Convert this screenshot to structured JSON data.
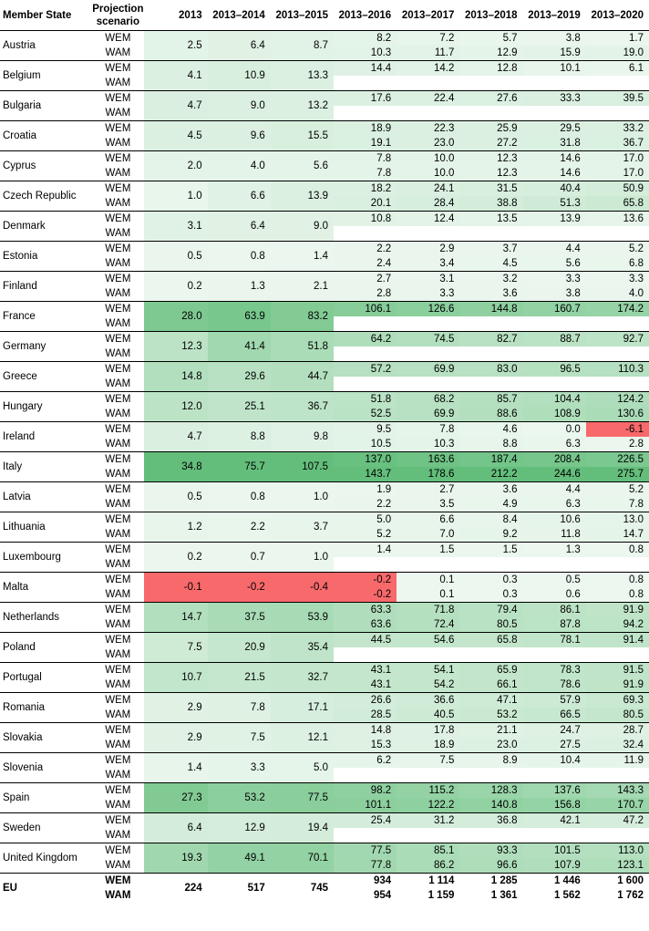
{
  "headers": {
    "member_state": "Member State",
    "projection_scenario": "Projection scenario",
    "periods": [
      "2013",
      "2013–2014",
      "2013–2015",
      "2013–2016",
      "2013–2017",
      "2013–2018",
      "2013–2019",
      "2013–2020"
    ]
  },
  "colors": {
    "positive_scale_max": "#63be7b",
    "zero": "#ffffff",
    "negative_scale_max": "#f8696b"
  },
  "rows": [
    {
      "state": "Austria",
      "wem": [
        "2.5",
        "6.4",
        "8.7",
        "8.2",
        "7.2",
        "5.7",
        "3.8",
        "1.7"
      ],
      "wam": [
        "10.3",
        "11.7",
        "12.9",
        "15.9",
        "19.0"
      ]
    },
    {
      "state": "Belgium",
      "wem": [
        "4.1",
        "10.9",
        "13.3",
        "14.4",
        "14.2",
        "12.8",
        "10.1",
        "6.1"
      ],
      "wam": []
    },
    {
      "state": "Bulgaria",
      "wem": [
        "4.7",
        "9.0",
        "13.2",
        "17.6",
        "22.4",
        "27.6",
        "33.3",
        "39.5"
      ],
      "wam": []
    },
    {
      "state": "Croatia",
      "wem": [
        "4.5",
        "9.6",
        "15.5",
        "18.9",
        "22.3",
        "25.9",
        "29.5",
        "33.2"
      ],
      "wam": [
        "19.1",
        "23.0",
        "27.2",
        "31.8",
        "36.7"
      ]
    },
    {
      "state": "Cyprus",
      "wem": [
        "2.0",
        "4.0",
        "5.6",
        "7.8",
        "10.0",
        "12.3",
        "14.6",
        "17.0"
      ],
      "wam": [
        "7.8",
        "10.0",
        "12.3",
        "14.6",
        "17.0"
      ]
    },
    {
      "state": "Czech Republic",
      "wem": [
        "1.0",
        "6.6",
        "13.9",
        "18.2",
        "24.1",
        "31.5",
        "40.4",
        "50.9"
      ],
      "wam": [
        "20.1",
        "28.4",
        "38.8",
        "51.3",
        "65.8"
      ]
    },
    {
      "state": "Denmark",
      "wem": [
        "3.1",
        "6.4",
        "9.0",
        "10.8",
        "12.4",
        "13.5",
        "13.9",
        "13.6"
      ],
      "wam": []
    },
    {
      "state": "Estonia",
      "wem": [
        "0.5",
        "0.8",
        "1.4",
        "2.2",
        "2.9",
        "3.7",
        "4.4",
        "5.2"
      ],
      "wam": [
        "2.4",
        "3.4",
        "4.5",
        "5.6",
        "6.8"
      ]
    },
    {
      "state": "Finland",
      "wem": [
        "0.2",
        "1.3",
        "2.1",
        "2.7",
        "3.1",
        "3.2",
        "3.3",
        "3.3"
      ],
      "wam": [
        "2.8",
        "3.3",
        "3.6",
        "3.8",
        "4.0"
      ]
    },
    {
      "state": "France",
      "wem": [
        "28.0",
        "63.9",
        "83.2",
        "106.1",
        "126.6",
        "144.8",
        "160.7",
        "174.2"
      ],
      "wam": []
    },
    {
      "state": "Germany",
      "wem": [
        "12.3",
        "41.4",
        "51.8",
        "64.2",
        "74.5",
        "82.7",
        "88.7",
        "92.7"
      ],
      "wam": []
    },
    {
      "state": "Greece",
      "wem": [
        "14.8",
        "29.6",
        "44.7",
        "57.2",
        "69.9",
        "83.0",
        "96.5",
        "110.3"
      ],
      "wam": []
    },
    {
      "state": "Hungary",
      "wem": [
        "12.0",
        "25.1",
        "36.7",
        "51.8",
        "68.2",
        "85.7",
        "104.4",
        "124.2"
      ],
      "wam": [
        "52.5",
        "69.9",
        "88.6",
        "108.9",
        "130.6"
      ]
    },
    {
      "state": "Ireland",
      "wem": [
        "4.7",
        "8.8",
        "9.8",
        "9.5",
        "7.8",
        "4.6",
        "0.0",
        "-6.1"
      ],
      "wam": [
        "10.5",
        "10.3",
        "8.8",
        "6.3",
        "2.8"
      ]
    },
    {
      "state": "Italy",
      "wem": [
        "34.8",
        "75.7",
        "107.5",
        "137.0",
        "163.6",
        "187.4",
        "208.4",
        "226.5"
      ],
      "wam": [
        "143.7",
        "178.6",
        "212.2",
        "244.6",
        "275.7"
      ]
    },
    {
      "state": "Latvia",
      "wem": [
        "0.5",
        "0.8",
        "1.0",
        "1.9",
        "2.7",
        "3.6",
        "4.4",
        "5.2"
      ],
      "wam": [
        "2.2",
        "3.5",
        "4.9",
        "6.3",
        "7.8"
      ]
    },
    {
      "state": "Lithuania",
      "wem": [
        "1.2",
        "2.2",
        "3.7",
        "5.0",
        "6.6",
        "8.4",
        "10.6",
        "13.0"
      ],
      "wam": [
        "5.2",
        "7.0",
        "9.2",
        "11.8",
        "14.7"
      ]
    },
    {
      "state": "Luxembourg",
      "wem": [
        "0.2",
        "0.7",
        "1.0",
        "1.4",
        "1.5",
        "1.5",
        "1.3",
        "0.8"
      ],
      "wam": []
    },
    {
      "state": "Malta",
      "wem": [
        "-0.1",
        "-0.2",
        "-0.4",
        "-0.2",
        "0.1",
        "0.3",
        "0.5",
        "0.8"
      ],
      "wam": [
        "-0.2",
        "0.1",
        "0.3",
        "0.6",
        "0.8"
      ]
    },
    {
      "state": "Netherlands",
      "wem": [
        "14.7",
        "37.5",
        "53.9",
        "63.3",
        "71.8",
        "79.4",
        "86.1",
        "91.9"
      ],
      "wam": [
        "63.6",
        "72.4",
        "80.5",
        "87.8",
        "94.2"
      ]
    },
    {
      "state": "Poland",
      "wem": [
        "7.5",
        "20.9",
        "35.4",
        "44.5",
        "54.6",
        "65.8",
        "78.1",
        "91.4"
      ],
      "wam": []
    },
    {
      "state": "Portugal",
      "wem": [
        "10.7",
        "21.5",
        "32.7",
        "43.1",
        "54.1",
        "65.9",
        "78.3",
        "91.5"
      ],
      "wam": [
        "43.1",
        "54.2",
        "66.1",
        "78.6",
        "91.9"
      ]
    },
    {
      "state": "Romania",
      "wem": [
        "2.9",
        "7.8",
        "17.1",
        "26.6",
        "36.6",
        "47.1",
        "57.9",
        "69.3"
      ],
      "wam": [
        "28.5",
        "40.5",
        "53.2",
        "66.5",
        "80.5"
      ]
    },
    {
      "state": "Slovakia",
      "wem": [
        "2.9",
        "7.5",
        "12.1",
        "14.8",
        "17.8",
        "21.1",
        "24.7",
        "28.7"
      ],
      "wam": [
        "15.3",
        "18.9",
        "23.0",
        "27.5",
        "32.4"
      ]
    },
    {
      "state": "Slovenia",
      "wem": [
        "1.4",
        "3.3",
        "5.0",
        "6.2",
        "7.5",
        "8.9",
        "10.4",
        "11.9"
      ],
      "wam": []
    },
    {
      "state": "Spain",
      "wem": [
        "27.3",
        "53.2",
        "77.5",
        "98.2",
        "115.2",
        "128.3",
        "137.6",
        "143.3"
      ],
      "wam": [
        "101.1",
        "122.2",
        "140.8",
        "156.8",
        "170.7"
      ]
    },
    {
      "state": "Sweden",
      "wem": [
        "6.4",
        "12.9",
        "19.4",
        "25.4",
        "31.2",
        "36.8",
        "42.1",
        "47.2"
      ],
      "wam": []
    },
    {
      "state": "United Kingdom",
      "wem": [
        "19.3",
        "49.1",
        "70.1",
        "77.5",
        "85.1",
        "93.3",
        "101.5",
        "113.0"
      ],
      "wam": [
        "77.8",
        "86.2",
        "96.6",
        "107.9",
        "123.1"
      ]
    },
    {
      "state": "EU",
      "wem": [
        "224",
        "517",
        "745",
        "934",
        "1 114",
        "1 285",
        "1 446",
        "1 600"
      ],
      "wam": [
        "954",
        "1 159",
        "1 361",
        "1 562",
        "1 762"
      ]
    }
  ],
  "scenario_labels": {
    "wem": "WEM",
    "wam": "WAM"
  }
}
